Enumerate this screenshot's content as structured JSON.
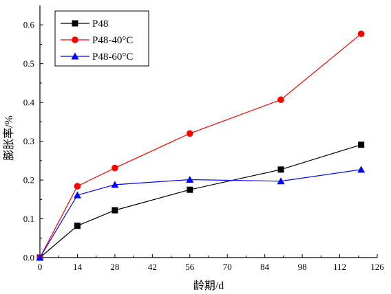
{
  "chart_data": {
    "type": "line",
    "xlabel": "龄期/d",
    "ylabel": "膨胀率/%",
    "xlim": [
      0,
      126
    ],
    "ylim": [
      0,
      0.65
    ],
    "xticks": [
      0,
      14,
      28,
      42,
      56,
      70,
      84,
      98,
      112,
      126
    ],
    "yticks": [
      0.0,
      0.1,
      0.2,
      0.3,
      0.4,
      0.5,
      0.6
    ],
    "ytick_labels": [
      "0.0",
      "0.1",
      "0.2",
      "0.3",
      "0.4",
      "0.5",
      "0.6"
    ],
    "grid": false,
    "legend_position": "top-left",
    "series": [
      {
        "name": "P48",
        "color": "#000000",
        "marker": "square",
        "x": [
          0,
          14,
          28,
          56,
          90,
          120
        ],
        "y": [
          0.0,
          0.082,
          0.122,
          0.175,
          0.227,
          0.291
        ]
      },
      {
        "name": "P48-40°C",
        "color": "#ff0000",
        "marker": "circle",
        "x": [
          0,
          14,
          28,
          56,
          90,
          120
        ],
        "y": [
          0.0,
          0.184,
          0.231,
          0.32,
          0.407,
          0.577
        ]
      },
      {
        "name": "P48-60°C",
        "color": "#0000ff",
        "marker": "triangle",
        "x": [
          0,
          14,
          28,
          56,
          90,
          120
        ],
        "y": [
          0.0,
          0.161,
          0.188,
          0.201,
          0.197,
          0.227
        ]
      }
    ]
  }
}
